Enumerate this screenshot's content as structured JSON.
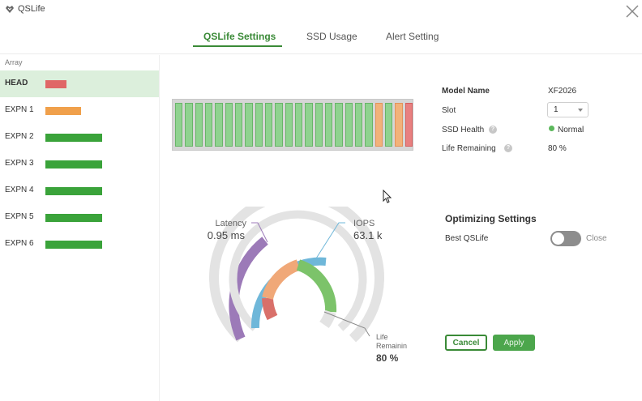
{
  "app": {
    "title": "QSLife",
    "icon": "qnap-logo-icon",
    "close_icon": "close-icon"
  },
  "tabs": [
    {
      "label": "QSLife Settings",
      "active": true
    },
    {
      "label": "SSD Usage",
      "active": false
    },
    {
      "label": "Alert Setting",
      "active": false
    }
  ],
  "sidebar": {
    "heading": "Array",
    "items": [
      {
        "label": "HEAD",
        "active": true,
        "status_color": "#e06666",
        "level": 0.37
      },
      {
        "label": "EXPN 1",
        "active": false,
        "status_color": "#f0a04b",
        "level": 0.63
      },
      {
        "label": "EXPN 2",
        "active": false,
        "status_color": "#3aa33a",
        "level": 1.0
      },
      {
        "label": "EXPN 3",
        "active": false,
        "status_color": "#3aa33a",
        "level": 1.0
      },
      {
        "label": "EXPN 4",
        "active": false,
        "status_color": "#3aa33a",
        "level": 1.0
      },
      {
        "label": "EXPN 5",
        "active": false,
        "status_color": "#3aa33a",
        "level": 1.0
      },
      {
        "label": "EXPN 6",
        "active": false,
        "status_color": "#3aa33a",
        "level": 1.0
      }
    ]
  },
  "slots": {
    "count": 24,
    "statuses": [
      "green",
      "green",
      "green",
      "green",
      "green",
      "green",
      "green",
      "green",
      "green",
      "green",
      "green",
      "green",
      "green",
      "green",
      "green",
      "green",
      "green",
      "green",
      "green",
      "green",
      "orange",
      "green",
      "orange",
      "red"
    ],
    "colors": {
      "green": "#8fd28f",
      "orange": "#f2b27a",
      "red": "#e88080"
    }
  },
  "info": {
    "model_name_label": "Model Name",
    "model_name_value": "XF2026",
    "slot_label": "Slot",
    "slot_value": "1",
    "ssd_health_label": "SSD Health",
    "ssd_health_value": "Normal",
    "life_remaining_label": "Life Remaining",
    "life_remaining_value": "80 %",
    "help_icon": "?"
  },
  "gauge": {
    "latency_label": "Latency",
    "latency_value": "0.95 ms",
    "iops_label": "IOPS",
    "iops_value": "63.1 k",
    "life_label": "Life\nRemainin",
    "life_value": "80 %",
    "colors": {
      "latency": "#9c7ab8",
      "iops": "#6fb7d9",
      "life_good": "#7cc36a",
      "life_warn": "#f0a878",
      "life_bad": "#d9706a",
      "track": "#e3e3e3"
    }
  },
  "optimizing": {
    "title": "Optimizing Settings",
    "best_qslife_label": "Best QSLife",
    "toggle_state": "Close",
    "enabled": false
  },
  "actions": {
    "cancel_label": "Cancel",
    "apply_label": "Apply"
  }
}
